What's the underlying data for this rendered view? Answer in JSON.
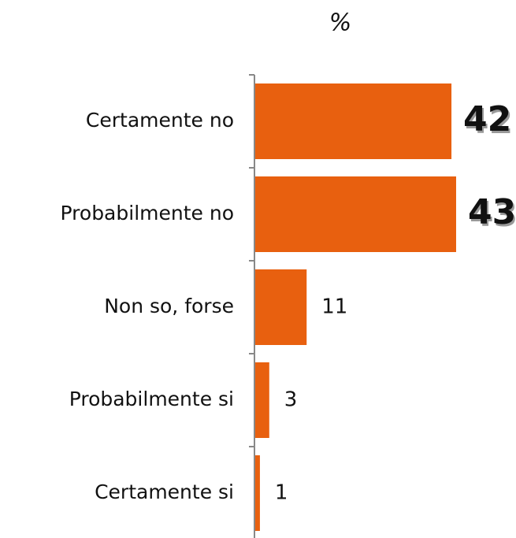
{
  "chart_data": {
    "type": "hbar",
    "title": "%",
    "categories": [
      "Certamente no",
      "Probabilmente no",
      "Non so, forse",
      "Probabilmente si",
      "Certamente si"
    ],
    "values": [
      42,
      43,
      11,
      3,
      1
    ],
    "color": "#e8600f"
  }
}
